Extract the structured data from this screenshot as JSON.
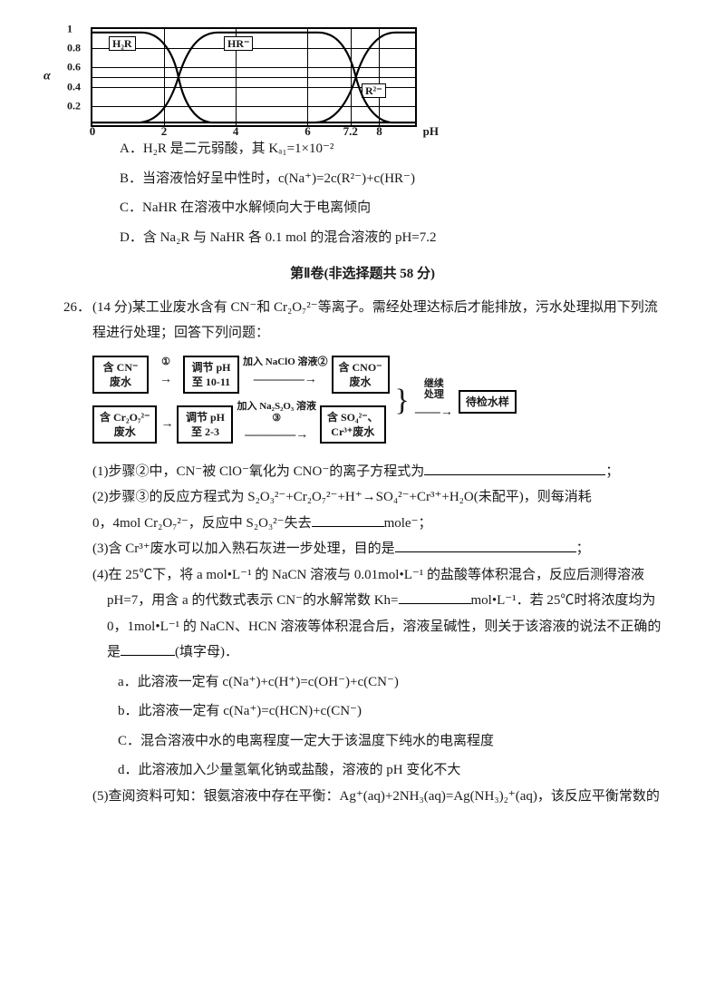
{
  "chart": {
    "type": "line",
    "ylim": [
      0,
      1.0
    ],
    "yticks": [
      0.2,
      0.4,
      0.6,
      0.8,
      1.0
    ],
    "xticks_major": [
      0,
      2,
      4,
      6,
      8
    ],
    "xtick_minor": 7.2,
    "y_axis_label": "α",
    "x_axis_label": "pH",
    "background_color": "#ffffff",
    "grid_color": "#000000",
    "series": [
      {
        "label": "H₂R",
        "label_pos": {
          "left": 18,
          "top": 8
        }
      },
      {
        "label": "HR⁻",
        "label_pos": {
          "left": 145,
          "top": 8
        }
      },
      {
        "label": "R²⁻",
        "label_pos": {
          "left": 297,
          "bottom": 30
        }
      }
    ],
    "curve_paths": [
      "M 0 4 L 55 4 C 75 4, 90 25, 96 55 C 102 85, 115 107, 135 107 L 360 107",
      "M 0 107 L 50 107 C 72 107, 86 88, 96 55 C 105 25, 118 4, 140 4 L 252 4 C 272 4, 286 22, 294 55 C 302 86, 316 107, 336 107 L 360 107",
      "M 0 107 L 248 107 C 268 107, 284 88, 294 55 C 303 25, 318 4, 338 4 L 360 4"
    ],
    "curve_stroke": "#000000",
    "curve_width": 2.2
  },
  "options": {
    "A": "A．H₂R 是二元弱酸，其 Kₐ₁=1×10⁻²",
    "B": "B．当溶液恰好呈中性时，c(Na⁺)=2c(R²⁻)+c(HR⁻)",
    "C": "C．NaHR 在溶液中水解倾向大于电离倾向",
    "D": "D．含 Na₂R 与 NaHR 各 0.1 mol 的混合溶液的 pH=7.2"
  },
  "section_title": "第Ⅱ卷(非选择题共 58 分)",
  "q26": {
    "number": "26．",
    "head": "(14 分)某工业废水含有 CN⁻和 Cr₂O₇²⁻等离子。需经处理达标后才能排放，污水处理拟用下列流程进行处理；回答下列问题：",
    "flow": {
      "row1": {
        "b1": "含 CN⁻<br>废水",
        "a1": "①",
        "b2": "调节 pH<br>至 10-11",
        "a2": "加入 NaClO 溶液②",
        "b3": "含 CNO⁻<br>废水"
      },
      "row2": {
        "b1": "含 Cr₂O₇²⁻<br>废水",
        "b2": "调节 pH<br>至 2-3",
        "a2": "加入 Na₂S₂O₃ 溶液<br>③",
        "b3": "含 SO₄²⁻、<br>Cr³⁺废水"
      },
      "merge": {
        "label": "继续<br>处理",
        "end": "待检水样"
      }
    },
    "p1": "(1)步骤②中，CN⁻被 ClO⁻氧化为 CNO⁻的离子方程式为",
    "p1_tail": "；",
    "p2a": "(2)步骤③的反应方程式为 S₂O₃²⁻+Cr₂O₇²⁻+H⁺→SO₄²⁻+Cr³⁺+H₂O(未配平)，则每消耗",
    "p2b_pre": "0，4mol Cr₂O₇²⁻，反应中 S₂O₃²⁻失去",
    "p2b_post": "mole⁻；",
    "p3_pre": "(3)含 Cr³⁺废水可以加入熟石灰进一步处理，目的是",
    "p3_post": "；",
    "p4a": "(4)在 25℃下，将 a mol•L⁻¹ 的 NaCN 溶液与 0.01mol•L⁻¹ 的盐酸等体积混合，反应后测得溶液",
    "p4b_pre": "pH=7，用含 a 的代数式表示 CN⁻的水解常数 Kh=",
    "p4b_post": "mol•L⁻¹．若 25℃时将浓度均为",
    "p4c": "0，1mol•L⁻¹ 的 NaCN、HCN 溶液等体积混合后，溶液呈碱性，则关于该溶液的说法不正确的",
    "p4d_pre": "是",
    "p4d_post": "(填字母)．",
    "sub": {
      "a": "a．此溶液一定有 c(Na⁺)+c(H⁺)=c(OH⁻)+c(CN⁻)",
      "b": "b．此溶液一定有 c(Na⁺)=c(HCN)+c(CN⁻)",
      "C": "C．混合溶液中水的电离程度一定大于该温度下纯水的电离程度",
      "d": "d．此溶液加入少量氢氧化钠或盐酸，溶液的 pH 变化不大"
    },
    "p5": "(5)查阅资料可知：银氨溶液中存在平衡：Ag⁺(aq)+2NH₃(aq)=Ag(NH₃)₂⁺(aq)，该反应平衡常数的"
  }
}
